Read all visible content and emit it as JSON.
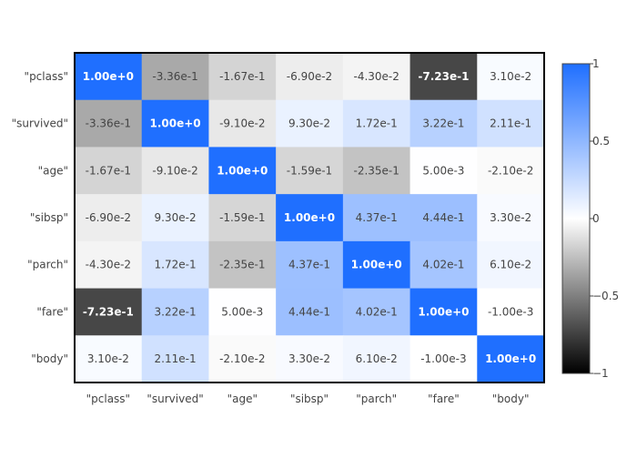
{
  "chart_data": {
    "type": "heatmap",
    "title": "",
    "xlabel": "",
    "ylabel": "",
    "x_labels": [
      "\"pclass\"",
      "\"survived\"",
      "\"age\"",
      "\"sibsp\"",
      "\"parch\"",
      "\"fare\"",
      "\"body\""
    ],
    "y_labels": [
      "\"pclass\"",
      "\"survived\"",
      "\"age\"",
      "\"sibsp\"",
      "\"parch\"",
      "\"fare\"",
      "\"body\""
    ],
    "z": [
      [
        1.0,
        -0.336,
        -0.167,
        -0.069,
        -0.043,
        -0.723,
        0.031
      ],
      [
        -0.336,
        1.0,
        -0.091,
        0.093,
        0.172,
        0.322,
        0.211
      ],
      [
        -0.167,
        -0.091,
        1.0,
        -0.159,
        -0.235,
        0.005,
        -0.021
      ],
      [
        -0.069,
        0.093,
        -0.159,
        1.0,
        0.437,
        0.444,
        0.033
      ],
      [
        -0.043,
        0.172,
        -0.235,
        0.437,
        1.0,
        0.402,
        0.061
      ],
      [
        -0.723,
        0.322,
        0.005,
        0.444,
        0.402,
        1.0,
        -0.001
      ],
      [
        0.031,
        0.211,
        -0.021,
        0.033,
        0.061,
        -0.001,
        1.0
      ]
    ],
    "text": [
      [
        "1.00e+0",
        "-3.36e-1",
        "-1.67e-1",
        "-6.90e-2",
        "-4.30e-2",
        "-7.23e-1",
        "3.10e-2"
      ],
      [
        "-3.36e-1",
        "1.00e+0",
        "-9.10e-2",
        "9.30e-2",
        "1.72e-1",
        "3.22e-1",
        "2.11e-1"
      ],
      [
        "-1.67e-1",
        "-9.10e-2",
        "1.00e+0",
        "-1.59e-1",
        "-2.35e-1",
        "5.00e-3",
        "-2.10e-2"
      ],
      [
        "-6.90e-2",
        "9.30e-2",
        "-1.59e-1",
        "1.00e+0",
        "4.37e-1",
        "4.44e-1",
        "3.30e-2"
      ],
      [
        "-4.30e-2",
        "1.72e-1",
        "-2.35e-1",
        "4.37e-1",
        "1.00e+0",
        "4.02e-1",
        "6.10e-2"
      ],
      [
        "-7.23e-1",
        "3.22e-1",
        "5.00e-3",
        "4.44e-1",
        "4.02e-1",
        "1.00e+0",
        "-1.00e-3"
      ],
      [
        "3.10e-2",
        "2.11e-1",
        "-2.10e-2",
        "3.30e-2",
        "6.10e-2",
        "-1.00e-3",
        "1.00e+0"
      ]
    ],
    "zrange": [
      -1,
      1
    ],
    "colorscale": {
      "min_color": "#000000",
      "mid_color": "#ffffff",
      "max_color": "#1f6fff"
    },
    "colorbar": {
      "ticks": [
        1,
        0.5,
        0,
        -0.5,
        -1
      ],
      "tick_labels": [
        "1",
        "0.5",
        "0",
        "−0.5",
        "−1"
      ]
    },
    "grid": false,
    "legend": "colorbar-right"
  }
}
